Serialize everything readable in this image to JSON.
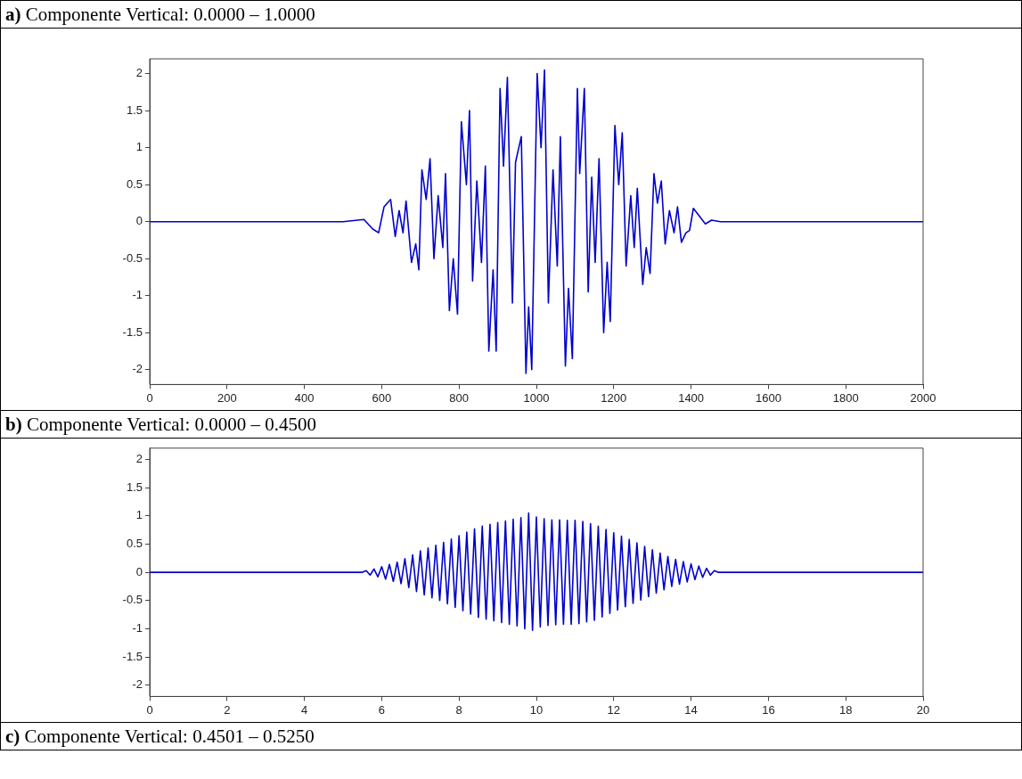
{
  "chart_data": [
    {
      "type": "line",
      "title": "a) Componente Vertical: 0.0000 – 1.0000",
      "xlim": [
        0,
        2000
      ],
      "xticks": [
        0,
        200,
        400,
        600,
        800,
        1000,
        1200,
        1400,
        1600,
        1800,
        2000
      ],
      "ylim": [
        -2.2,
        2.2
      ],
      "yticks": [
        -2,
        -1.5,
        -1,
        -0.5,
        0,
        0.5,
        1,
        1.5,
        2
      ],
      "grid": false,
      "legend": false,
      "marker": "none",
      "line_style": "solid",
      "series": [
        {
          "color": "#0000cc",
          "x": [
            0,
            500,
            554,
            577,
            592,
            606,
            623,
            635,
            645,
            655,
            663,
            677,
            688,
            696,
            704,
            715,
            725,
            735,
            746,
            758,
            765,
            775,
            785,
            796,
            806,
            819,
            827,
            835,
            846,
            858,
            868,
            877,
            888,
            896,
            906,
            915,
            925,
            938,
            946,
            961,
            973,
            980,
            988,
            1002,
            1012,
            1021,
            1031,
            1043,
            1054,
            1062,
            1075,
            1083,
            1093,
            1106,
            1112,
            1124,
            1134,
            1143,
            1152,
            1162,
            1174,
            1183,
            1191,
            1203,
            1213,
            1222,
            1232,
            1244,
            1253,
            1261,
            1275,
            1284,
            1294,
            1304,
            1313,
            1323,
            1333,
            1344,
            1356,
            1365,
            1375,
            1387,
            1396,
            1406,
            1418,
            1437,
            1453,
            1476,
            2000
          ],
          "values": [
            0,
            0,
            0.03,
            -0.1,
            -0.15,
            0.2,
            0.3,
            -0.2,
            0.15,
            -0.15,
            0.28,
            -0.55,
            -0.3,
            -0.65,
            0.7,
            0.3,
            0.85,
            -0.5,
            0.35,
            -0.35,
            0.65,
            -1.2,
            -0.5,
            -1.25,
            1.35,
            0.5,
            1.5,
            -0.8,
            0.55,
            -0.55,
            0.75,
            -1.75,
            -0.65,
            -1.75,
            1.8,
            0.75,
            1.95,
            -1.1,
            0.8,
            1.15,
            -2.05,
            -1.15,
            -2,
            2,
            1,
            2.05,
            -1.1,
            0.7,
            -0.6,
            1.15,
            -1.95,
            -0.9,
            -1.85,
            1.8,
            0.65,
            1.8,
            -0.95,
            0.6,
            -0.55,
            0.85,
            -1.5,
            -0.55,
            -1.35,
            1.3,
            0.5,
            1.2,
            -0.6,
            0.35,
            -0.35,
            0.45,
            -0.85,
            -0.35,
            -0.7,
            0.65,
            0.25,
            0.55,
            -0.3,
            0.15,
            -0.15,
            0.2,
            -0.28,
            -0.15,
            -0.12,
            0.18,
            0.1,
            -0.03,
            0.02,
            0,
            0
          ]
        }
      ]
    },
    {
      "type": "line",
      "title": "b) Componente Vertical: 0.0000 – 0.4500",
      "xlim": [
        0,
        20
      ],
      "xticks": [
        0,
        2,
        4,
        6,
        8,
        10,
        12,
        14,
        16,
        18,
        20
      ],
      "ylim": [
        -2.2,
        2.2
      ],
      "yticks": [
        -2,
        -1.5,
        -1,
        -0.5,
        0,
        0.5,
        1,
        1.5,
        2
      ],
      "grid": false,
      "legend": false,
      "marker": "none",
      "line_style": "solid",
      "series": [
        {
          "color": "#0000cc",
          "x": [
            0,
            5.5,
            5.6,
            5.7,
            5.8,
            5.9,
            6.0,
            6.1,
            6.2,
            6.3,
            6.4,
            6.5,
            6.6,
            6.7,
            6.8,
            6.9,
            7.0,
            7.1,
            7.2,
            7.3,
            7.4,
            7.5,
            7.6,
            7.7,
            7.8,
            7.9,
            8.0,
            8.1,
            8.2,
            8.3,
            8.4,
            8.5,
            8.6,
            8.7,
            8.8,
            8.9,
            9.0,
            9.1,
            9.2,
            9.3,
            9.4,
            9.5,
            9.6,
            9.7,
            9.8,
            9.9,
            10.0,
            10.1,
            10.2,
            10.3,
            10.4,
            10.5,
            10.6,
            10.7,
            10.8,
            10.9,
            11.0,
            11.1,
            11.2,
            11.3,
            11.4,
            11.5,
            11.6,
            11.7,
            11.8,
            11.9,
            12.0,
            12.1,
            12.2,
            12.3,
            12.4,
            12.5,
            12.6,
            12.7,
            12.8,
            12.9,
            13.0,
            13.1,
            13.2,
            13.3,
            13.4,
            13.5,
            13.6,
            13.7,
            13.8,
            13.9,
            14.0,
            14.1,
            14.2,
            14.3,
            14.4,
            14.5,
            14.6,
            14.7,
            20
          ],
          "values": [
            0,
            0,
            0.03,
            -0.05,
            0.06,
            -0.08,
            0.1,
            -0.12,
            0.14,
            -0.16,
            0.18,
            -0.2,
            0.24,
            -0.27,
            0.31,
            -0.34,
            0.38,
            -0.4,
            0.43,
            -0.45,
            0.48,
            -0.5,
            0.53,
            -0.56,
            0.59,
            -0.62,
            0.65,
            -0.68,
            0.71,
            -0.74,
            0.77,
            -0.8,
            0.82,
            -0.83,
            0.85,
            -0.86,
            0.88,
            -0.89,
            0.91,
            -0.92,
            0.94,
            -0.95,
            0.97,
            -1,
            1.05,
            -1.03,
            0.98,
            -0.97,
            0.95,
            -0.94,
            0.93,
            -0.93,
            0.93,
            -0.92,
            0.92,
            -0.92,
            0.92,
            -0.91,
            0.9,
            -0.88,
            0.86,
            -0.85,
            0.82,
            -0.79,
            0.76,
            -0.73,
            0.7,
            -0.67,
            0.64,
            -0.61,
            0.58,
            -0.55,
            0.52,
            -0.49,
            0.46,
            -0.43,
            0.4,
            -0.37,
            0.34,
            -0.31,
            0.28,
            -0.25,
            0.23,
            -0.21,
            0.19,
            -0.17,
            0.15,
            -0.13,
            0.11,
            -0.09,
            0.07,
            -0.05,
            0.03,
            0,
            0
          ]
        }
      ]
    },
    {
      "type": "other",
      "title": "c) Componente Vertical: 0.4501 – 0.5250"
    }
  ]
}
